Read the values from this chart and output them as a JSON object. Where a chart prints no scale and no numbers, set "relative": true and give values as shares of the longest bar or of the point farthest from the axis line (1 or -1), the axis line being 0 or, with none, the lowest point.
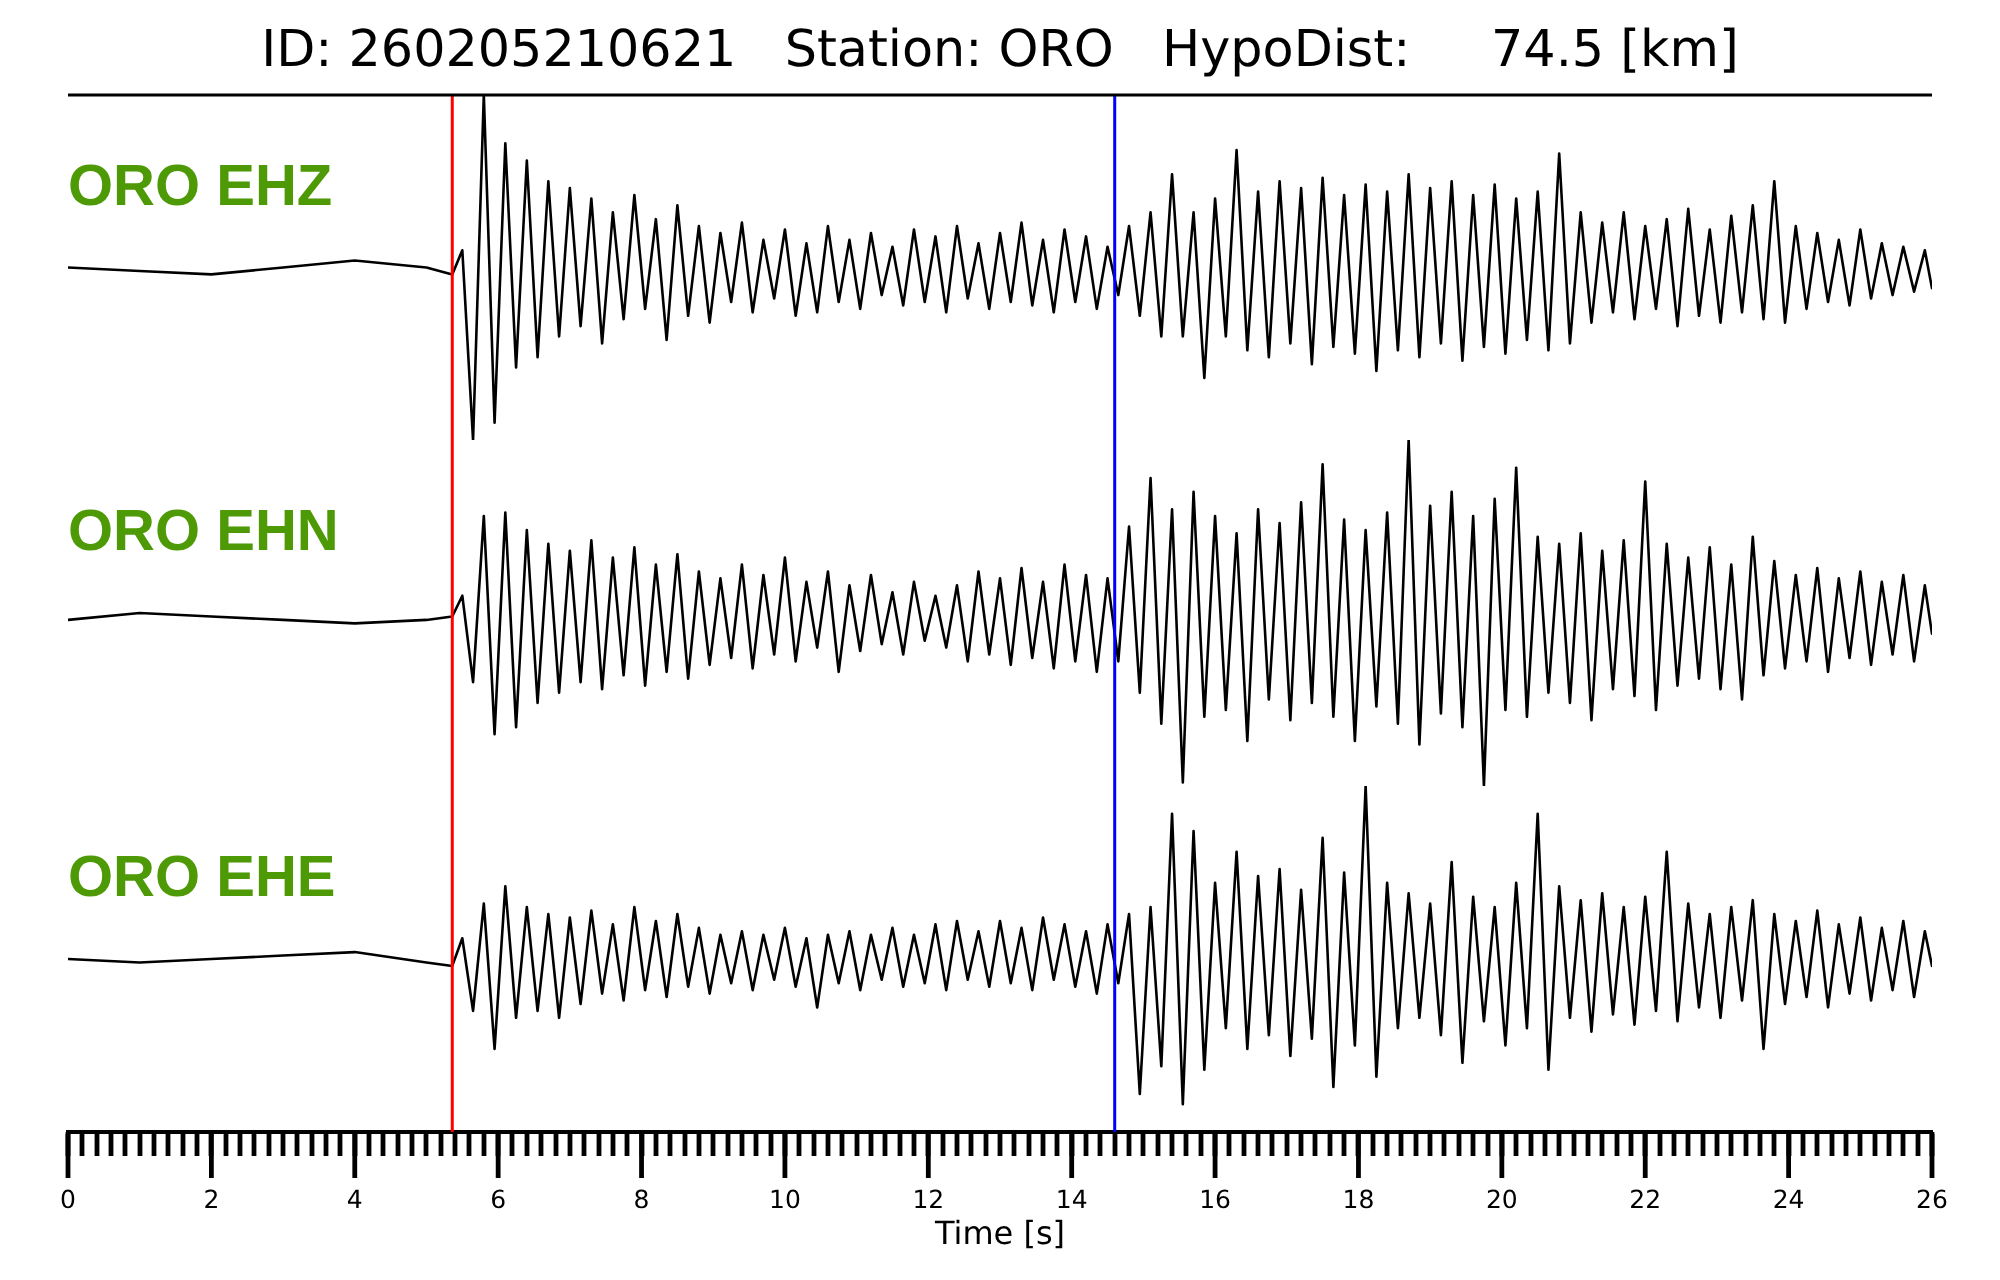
{
  "chart_data": [
    {
      "type": "line",
      "title": "ID: 260205210621   Station: ORO   HypoDist:     74.5 [km]",
      "relative": true,
      "tick_labels": false,
      "xlim": [
        0,
        26
      ],
      "x": [
        0,
        1,
        2,
        3,
        4,
        5,
        5.36,
        5.5,
        5.65,
        5.8,
        5.95,
        6.1,
        6.25,
        6.4,
        6.55,
        6.7,
        6.85,
        7,
        7.15,
        7.3,
        7.45,
        7.6,
        7.75,
        7.9,
        8.05,
        8.2,
        8.35,
        8.5,
        8.65,
        8.8,
        8.95,
        9.1,
        9.25,
        9.4,
        9.55,
        9.7,
        9.85,
        10,
        10.15,
        10.3,
        10.45,
        10.6,
        10.75,
        10.9,
        11.05,
        11.2,
        11.35,
        11.5,
        11.65,
        11.8,
        11.95,
        12.1,
        12.25,
        12.4,
        12.55,
        12.7,
        12.85,
        13,
        13.15,
        13.3,
        13.45,
        13.6,
        13.75,
        13.9,
        14.05,
        14.2,
        14.35,
        14.5,
        14.65,
        14.8,
        14.95,
        15.1,
        15.25,
        15.4,
        15.55,
        15.7,
        15.85,
        16,
        16.15,
        16.3,
        16.45,
        16.6,
        16.75,
        16.9,
        17.05,
        17.2,
        17.35,
        17.5,
        17.65,
        17.8,
        17.95,
        18.1,
        18.25,
        18.4,
        18.55,
        18.7,
        18.85,
        19,
        19.15,
        19.3,
        19.45,
        19.6,
        19.75,
        19.9,
        20.05,
        20.2,
        20.35,
        20.5,
        20.65,
        20.8,
        20.95,
        21.1,
        21.25,
        21.4,
        21.55,
        21.7,
        21.85,
        22,
        22.15,
        22.3,
        22.45,
        22.6,
        22.75,
        22.9,
        23.05,
        23.2,
        23.35,
        23.5,
        23.65,
        23.8,
        23.95,
        24.1,
        24.25,
        24.4,
        24.55,
        24.7,
        24.85,
        25,
        25.15,
        25.3,
        25.45,
        25.6,
        25.75,
        25.9,
        26
      ],
      "series": [
        {
          "name": "ORO EHZ",
          "color": "#000000",
          "values": [
            0.5,
            0.49,
            0.48,
            0.5,
            0.52,
            0.5,
            0.48,
            0.55,
            0.0,
            1.0,
            0.05,
            0.86,
            0.21,
            0.81,
            0.24,
            0.75,
            0.3,
            0.73,
            0.33,
            0.7,
            0.28,
            0.66,
            0.35,
            0.71,
            0.38,
            0.64,
            0.29,
            0.68,
            0.36,
            0.62,
            0.34,
            0.6,
            0.4,
            0.63,
            0.37,
            0.58,
            0.41,
            0.61,
            0.36,
            0.57,
            0.37,
            0.62,
            0.4,
            0.58,
            0.38,
            0.6,
            0.42,
            0.56,
            0.39,
            0.61,
            0.4,
            0.59,
            0.37,
            0.62,
            0.41,
            0.57,
            0.38,
            0.6,
            0.4,
            0.63,
            0.39,
            0.58,
            0.37,
            0.61,
            0.4,
            0.59,
            0.38,
            0.56,
            0.42,
            0.62,
            0.36,
            0.66,
            0.3,
            0.77,
            0.3,
            0.66,
            0.18,
            0.7,
            0.3,
            0.84,
            0.26,
            0.72,
            0.24,
            0.75,
            0.28,
            0.73,
            0.22,
            0.76,
            0.27,
            0.71,
            0.25,
            0.74,
            0.2,
            0.72,
            0.26,
            0.77,
            0.24,
            0.73,
            0.28,
            0.75,
            0.23,
            0.71,
            0.27,
            0.74,
            0.25,
            0.7,
            0.29,
            0.72,
            0.26,
            0.83,
            0.28,
            0.66,
            0.34,
            0.63,
            0.37,
            0.66,
            0.35,
            0.62,
            0.38,
            0.64,
            0.33,
            0.67,
            0.36,
            0.61,
            0.34,
            0.65,
            0.37,
            0.68,
            0.35,
            0.75,
            0.34,
            0.62,
            0.38,
            0.6,
            0.4,
            0.58,
            0.39,
            0.61,
            0.41,
            0.57,
            0.42,
            0.56,
            0.43,
            0.55,
            0.44
          ]
        }
      ],
      "ref_lines": [
        {
          "axis": "x",
          "value": 5.36,
          "color": "#ff0000"
        },
        {
          "axis": "x",
          "value": 14.6,
          "color": "#0000ff"
        }
      ]
    },
    {
      "type": "line",
      "relative": true,
      "tick_labels": false,
      "xlim": [
        0,
        26
      ],
      "x": [
        0,
        1,
        2,
        3,
        4,
        5,
        5.36,
        5.5,
        5.65,
        5.8,
        5.95,
        6.1,
        6.25,
        6.4,
        6.55,
        6.7,
        6.85,
        7,
        7.15,
        7.3,
        7.45,
        7.6,
        7.75,
        7.9,
        8.05,
        8.2,
        8.35,
        8.5,
        8.65,
        8.8,
        8.95,
        9.1,
        9.25,
        9.4,
        9.55,
        9.7,
        9.85,
        10,
        10.15,
        10.3,
        10.45,
        10.6,
        10.75,
        10.9,
        11.05,
        11.2,
        11.35,
        11.5,
        11.65,
        11.8,
        11.95,
        12.1,
        12.25,
        12.4,
        12.55,
        12.7,
        12.85,
        13,
        13.15,
        13.3,
        13.45,
        13.6,
        13.75,
        13.9,
        14.05,
        14.2,
        14.35,
        14.5,
        14.65,
        14.8,
        14.95,
        15.1,
        15.25,
        15.4,
        15.55,
        15.7,
        15.85,
        16,
        16.15,
        16.3,
        16.45,
        16.6,
        16.75,
        16.9,
        17.05,
        17.2,
        17.35,
        17.5,
        17.65,
        17.8,
        17.95,
        18.1,
        18.25,
        18.4,
        18.55,
        18.7,
        18.85,
        19,
        19.15,
        19.3,
        19.45,
        19.6,
        19.75,
        19.9,
        20.05,
        20.2,
        20.35,
        20.5,
        20.65,
        20.8,
        20.95,
        21.1,
        21.25,
        21.4,
        21.55,
        21.7,
        21.85,
        22,
        22.15,
        22.3,
        22.45,
        22.6,
        22.75,
        22.9,
        23.05,
        23.2,
        23.35,
        23.5,
        23.65,
        23.8,
        23.95,
        24.1,
        24.25,
        24.4,
        24.55,
        24.7,
        24.85,
        25,
        25.15,
        25.3,
        25.45,
        25.6,
        25.75,
        25.9,
        26
      ],
      "series": [
        {
          "name": "ORO EHN",
          "color": "#000000",
          "values": [
            0.48,
            0.5,
            0.49,
            0.48,
            0.47,
            0.48,
            0.49,
            0.55,
            0.3,
            0.78,
            0.15,
            0.79,
            0.17,
            0.74,
            0.24,
            0.7,
            0.27,
            0.68,
            0.3,
            0.71,
            0.28,
            0.66,
            0.32,
            0.69,
            0.29,
            0.64,
            0.33,
            0.67,
            0.31,
            0.62,
            0.35,
            0.6,
            0.37,
            0.64,
            0.34,
            0.61,
            0.38,
            0.66,
            0.36,
            0.59,
            0.4,
            0.62,
            0.33,
            0.58,
            0.39,
            0.61,
            0.41,
            0.56,
            0.38,
            0.59,
            0.42,
            0.55,
            0.4,
            0.58,
            0.36,
            0.62,
            0.38,
            0.6,
            0.35,
            0.63,
            0.37,
            0.59,
            0.34,
            0.64,
            0.36,
            0.61,
            0.33,
            0.6,
            0.36,
            0.75,
            0.27,
            0.89,
            0.18,
            0.8,
            0.01,
            0.85,
            0.2,
            0.78,
            0.22,
            0.73,
            0.13,
            0.8,
            0.25,
            0.76,
            0.19,
            0.82,
            0.24,
            0.93,
            0.2,
            0.77,
            0.13,
            0.74,
            0.23,
            0.79,
            0.18,
            1.0,
            0.12,
            0.81,
            0.21,
            0.85,
            0.17,
            0.78,
            0.0,
            0.83,
            0.22,
            0.92,
            0.2,
            0.72,
            0.27,
            0.7,
            0.24,
            0.73,
            0.19,
            0.68,
            0.28,
            0.71,
            0.26,
            0.88,
            0.22,
            0.7,
            0.29,
            0.66,
            0.31,
            0.69,
            0.28,
            0.64,
            0.25,
            0.72,
            0.32,
            0.65,
            0.34,
            0.61,
            0.36,
            0.63,
            0.33,
            0.6,
            0.37,
            0.62,
            0.35,
            0.59,
            0.38,
            0.61,
            0.36,
            0.58,
            0.44
          ]
        }
      ],
      "ref_lines": [
        {
          "axis": "x",
          "value": 5.36,
          "color": "#ff0000"
        },
        {
          "axis": "x",
          "value": 14.6,
          "color": "#0000ff"
        }
      ]
    },
    {
      "type": "line",
      "xlabel": "Time [s]",
      "relative": true,
      "tick_labels": "x",
      "xlim": [
        0,
        26
      ],
      "xticks": [
        0,
        {
          "value": 0.2,
          "label": null
        },
        {
          "value": 0.4,
          "label": null
        },
        {
          "value": 0.6,
          "label": null
        },
        {
          "value": 0.8,
          "label": null
        },
        {
          "value": 1,
          "label": null
        },
        {
          "value": 1.2,
          "label": null
        },
        {
          "value": 1.4,
          "label": null
        },
        {
          "value": 1.6,
          "label": null
        },
        {
          "value": 1.8,
          "label": null
        },
        2,
        {
          "value": 2.2,
          "label": null
        },
        {
          "value": 2.4,
          "label": null
        },
        {
          "value": 2.6,
          "label": null
        },
        {
          "value": 2.8,
          "label": null
        },
        {
          "value": 3,
          "label": null
        },
        {
          "value": 3.2,
          "label": null
        },
        {
          "value": 3.4,
          "label": null
        },
        {
          "value": 3.6,
          "label": null
        },
        {
          "value": 3.8,
          "label": null
        },
        4,
        {
          "value": 4.2,
          "label": null
        },
        {
          "value": 4.4,
          "label": null
        },
        {
          "value": 4.6,
          "label": null
        },
        {
          "value": 4.8,
          "label": null
        },
        {
          "value": 5,
          "label": null
        },
        {
          "value": 5.2,
          "label": null
        },
        {
          "value": 5.4,
          "label": null
        },
        {
          "value": 5.6,
          "label": null
        },
        {
          "value": 5.8,
          "label": null
        },
        6,
        {
          "value": 6.2,
          "label": null
        },
        {
          "value": 6.4,
          "label": null
        },
        {
          "value": 6.6,
          "label": null
        },
        {
          "value": 6.8,
          "label": null
        },
        {
          "value": 7,
          "label": null
        },
        {
          "value": 7.2,
          "label": null
        },
        {
          "value": 7.4,
          "label": null
        },
        {
          "value": 7.6,
          "label": null
        },
        {
          "value": 7.8,
          "label": null
        },
        8,
        {
          "value": 8.2,
          "label": null
        },
        {
          "value": 8.4,
          "label": null
        },
        {
          "value": 8.6,
          "label": null
        },
        {
          "value": 8.8,
          "label": null
        },
        {
          "value": 9,
          "label": null
        },
        {
          "value": 9.2,
          "label": null
        },
        {
          "value": 9.4,
          "label": null
        },
        {
          "value": 9.6,
          "label": null
        },
        {
          "value": 9.8,
          "label": null
        },
        10,
        {
          "value": 10.2,
          "label": null
        },
        {
          "value": 10.4,
          "label": null
        },
        {
          "value": 10.6,
          "label": null
        },
        {
          "value": 10.8,
          "label": null
        },
        {
          "value": 11,
          "label": null
        },
        {
          "value": 11.2,
          "label": null
        },
        {
          "value": 11.4,
          "label": null
        },
        {
          "value": 11.6,
          "label": null
        },
        {
          "value": 11.8,
          "label": null
        },
        12,
        {
          "value": 12.2,
          "label": null
        },
        {
          "value": 12.4,
          "label": null
        },
        {
          "value": 12.6,
          "label": null
        },
        {
          "value": 12.8,
          "label": null
        },
        {
          "value": 13,
          "label": null
        },
        {
          "value": 13.2,
          "label": null
        },
        {
          "value": 13.4,
          "label": null
        },
        {
          "value": 13.6,
          "label": null
        },
        {
          "value": 13.8,
          "label": null
        },
        14,
        {
          "value": 14.2,
          "label": null
        },
        {
          "value": 14.4,
          "label": null
        },
        {
          "value": 14.6,
          "label": null
        },
        {
          "value": 14.8,
          "label": null
        },
        {
          "value": 15,
          "label": null
        },
        {
          "value": 15.2,
          "label": null
        },
        {
          "value": 15.4,
          "label": null
        },
        {
          "value": 15.6,
          "label": null
        },
        {
          "value": 15.8,
          "label": null
        },
        16,
        {
          "value": 16.2,
          "label": null
        },
        {
          "value": 16.4,
          "label": null
        },
        {
          "value": 16.6,
          "label": null
        },
        {
          "value": 16.8,
          "label": null
        },
        {
          "value": 17,
          "label": null
        },
        {
          "value": 17.2,
          "label": null
        },
        {
          "value": 17.4,
          "label": null
        },
        {
          "value": 17.6,
          "label": null
        },
        {
          "value": 17.8,
          "label": null
        },
        18,
        {
          "value": 18.2,
          "label": null
        },
        {
          "value": 18.4,
          "label": null
        },
        {
          "value": 18.6,
          "label": null
        },
        {
          "value": 18.8,
          "label": null
        },
        {
          "value": 19,
          "label": null
        },
        {
          "value": 19.2,
          "label": null
        },
        {
          "value": 19.4,
          "label": null
        },
        {
          "value": 19.6,
          "label": null
        },
        {
          "value": 19.8,
          "label": null
        },
        20,
        {
          "value": 20.2,
          "label": null
        },
        {
          "value": 20.4,
          "label": null
        },
        {
          "value": 20.6,
          "label": null
        },
        {
          "value": 20.8,
          "label": null
        },
        {
          "value": 21,
          "label": null
        },
        {
          "value": 21.2,
          "label": null
        },
        {
          "value": 21.4,
          "label": null
        },
        {
          "value": 21.6,
          "label": null
        },
        {
          "value": 21.8,
          "label": null
        },
        22,
        {
          "value": 22.2,
          "label": null
        },
        {
          "value": 22.4,
          "label": null
        },
        {
          "value": 22.6,
          "label": null
        },
        {
          "value": 22.8,
          "label": null
        },
        {
          "value": 23,
          "label": null
        },
        {
          "value": 23.2,
          "label": null
        },
        {
          "value": 23.4,
          "label": null
        },
        {
          "value": 23.6,
          "label": null
        },
        {
          "value": 23.8,
          "label": null
        },
        24,
        {
          "value": 24.2,
          "label": null
        },
        {
          "value": 24.4,
          "label": null
        },
        {
          "value": 24.6,
          "label": null
        },
        {
          "value": 24.8,
          "label": null
        },
        {
          "value": 25,
          "label": null
        },
        {
          "value": 25.2,
          "label": null
        },
        {
          "value": 25.4,
          "label": null
        },
        {
          "value": 25.6,
          "label": null
        },
        {
          "value": 25.8,
          "label": null
        },
        26
      ],
      "x": [
        0,
        1,
        2,
        3,
        4,
        5,
        5.36,
        5.5,
        5.65,
        5.8,
        5.95,
        6.1,
        6.25,
        6.4,
        6.55,
        6.7,
        6.85,
        7,
        7.15,
        7.3,
        7.45,
        7.6,
        7.75,
        7.9,
        8.05,
        8.2,
        8.35,
        8.5,
        8.65,
        8.8,
        8.95,
        9.1,
        9.25,
        9.4,
        9.55,
        9.7,
        9.85,
        10,
        10.15,
        10.3,
        10.45,
        10.6,
        10.75,
        10.9,
        11.05,
        11.2,
        11.35,
        11.5,
        11.65,
        11.8,
        11.95,
        12.1,
        12.25,
        12.4,
        12.55,
        12.7,
        12.85,
        13,
        13.15,
        13.3,
        13.45,
        13.6,
        13.75,
        13.9,
        14.05,
        14.2,
        14.35,
        14.5,
        14.65,
        14.8,
        14.95,
        15.1,
        15.25,
        15.4,
        15.55,
        15.7,
        15.85,
        16,
        16.15,
        16.3,
        16.45,
        16.6,
        16.75,
        16.9,
        17.05,
        17.2,
        17.35,
        17.5,
        17.65,
        17.8,
        17.95,
        18.1,
        18.25,
        18.4,
        18.55,
        18.7,
        18.85,
        19,
        19.15,
        19.3,
        19.45,
        19.6,
        19.75,
        19.9,
        20.05,
        20.2,
        20.35,
        20.5,
        20.65,
        20.8,
        20.95,
        21.1,
        21.25,
        21.4,
        21.55,
        21.7,
        21.85,
        22,
        22.15,
        22.3,
        22.45,
        22.6,
        22.75,
        22.9,
        23.05,
        23.2,
        23.35,
        23.5,
        23.65,
        23.8,
        23.95,
        24.1,
        24.25,
        24.4,
        24.55,
        24.7,
        24.85,
        25,
        25.15,
        25.3,
        25.45,
        25.6,
        25.75,
        25.9,
        26
      ],
      "series": [
        {
          "name": "ORO EHE",
          "color": "#000000",
          "values": [
            0.5,
            0.49,
            0.5,
            0.51,
            0.52,
            0.49,
            0.48,
            0.56,
            0.35,
            0.66,
            0.24,
            0.71,
            0.33,
            0.65,
            0.35,
            0.63,
            0.33,
            0.62,
            0.37,
            0.64,
            0.4,
            0.6,
            0.38,
            0.65,
            0.41,
            0.61,
            0.39,
            0.63,
            0.42,
            0.59,
            0.4,
            0.57,
            0.43,
            0.58,
            0.41,
            0.57,
            0.44,
            0.59,
            0.42,
            0.56,
            0.36,
            0.57,
            0.43,
            0.58,
            0.41,
            0.57,
            0.44,
            0.59,
            0.42,
            0.57,
            0.43,
            0.6,
            0.41,
            0.61,
            0.44,
            0.58,
            0.42,
            0.61,
            0.43,
            0.59,
            0.41,
            0.62,
            0.44,
            0.6,
            0.42,
            0.58,
            0.4,
            0.6,
            0.43,
            0.63,
            0.11,
            0.65,
            0.19,
            0.92,
            0.08,
            0.87,
            0.18,
            0.72,
            0.3,
            0.81,
            0.24,
            0.74,
            0.28,
            0.76,
            0.22,
            0.7,
            0.27,
            0.85,
            0.13,
            0.75,
            0.25,
            1.0,
            0.16,
            0.72,
            0.3,
            0.69,
            0.33,
            0.66,
            0.28,
            0.78,
            0.2,
            0.68,
            0.32,
            0.65,
            0.25,
            0.72,
            0.3,
            0.92,
            0.18,
            0.71,
            0.33,
            0.67,
            0.29,
            0.69,
            0.34,
            0.65,
            0.31,
            0.68,
            0.35,
            0.81,
            0.32,
            0.66,
            0.36,
            0.63,
            0.33,
            0.65,
            0.38,
            0.67,
            0.24,
            0.63,
            0.37,
            0.61,
            0.39,
            0.64,
            0.36,
            0.6,
            0.4,
            0.62,
            0.38,
            0.59,
            0.41,
            0.61,
            0.39,
            0.58,
            0.48
          ]
        }
      ],
      "ref_lines": [
        {
          "axis": "x",
          "value": 5.36,
          "color": "#ff0000"
        },
        {
          "axis": "x",
          "value": 14.6,
          "color": "#0000ff"
        }
      ]
    }
  ]
}
